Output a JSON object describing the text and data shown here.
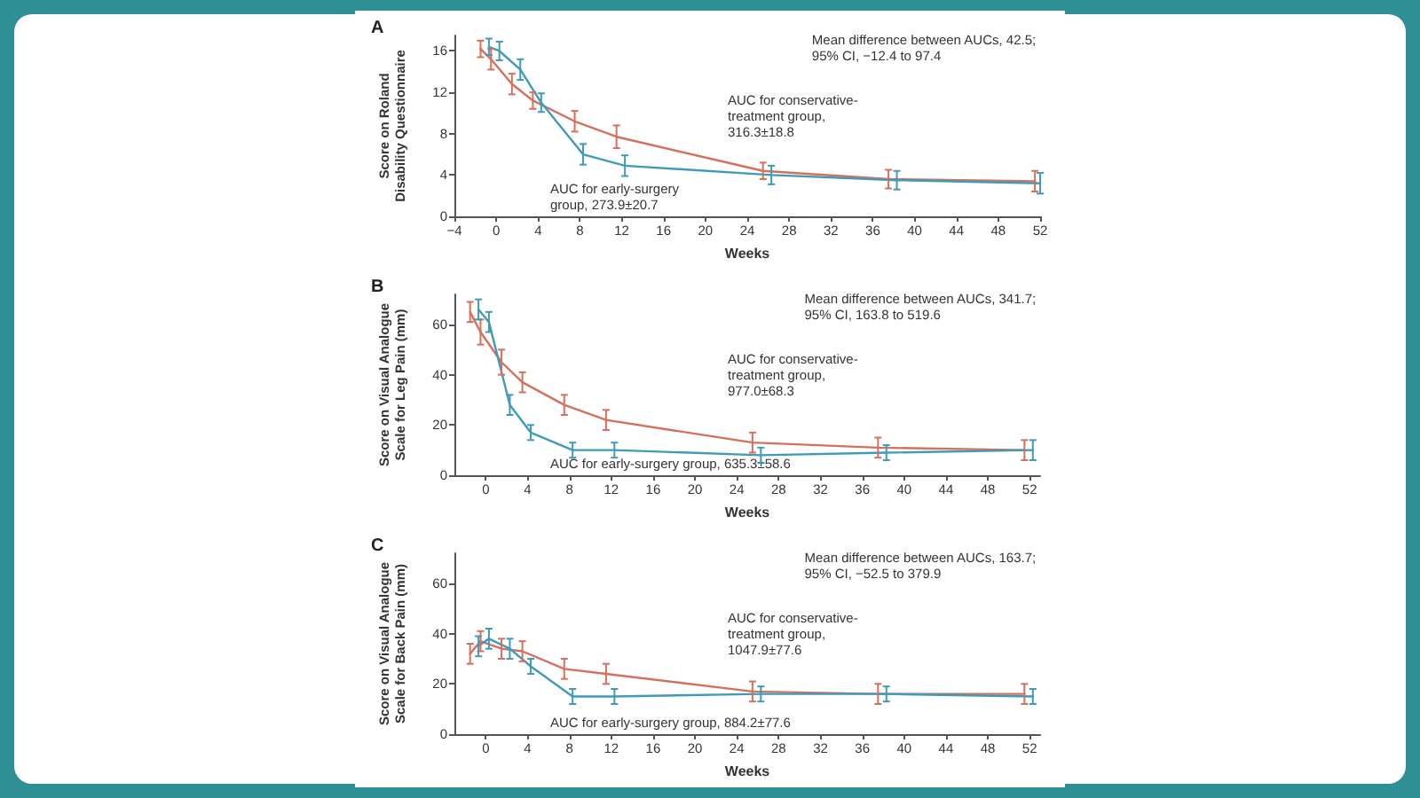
{
  "chart_data": [
    {
      "type": "line",
      "title": "A",
      "xlabel": "Weeks",
      "ylabel": "Score on Roland Disability Questionnaire",
      "xlim": [
        -4,
        52
      ],
      "xticks": [
        -4,
        0,
        4,
        8,
        12,
        16,
        20,
        24,
        28,
        32,
        36,
        40,
        44,
        48,
        52
      ],
      "ylim": [
        0,
        17.5
      ],
      "yticks": [
        0,
        4,
        8,
        12,
        16
      ],
      "grid": false,
      "marker": "none",
      "line_style": "solid",
      "series": [
        {
          "color": "#d4705c",
          "x": [
            -1.5,
            -0.5,
            1.5,
            3.5,
            7.5,
            11.5,
            25.5,
            37.5,
            51.5
          ],
          "values": [
            16.2,
            15.2,
            12.8,
            11.2,
            9.2,
            7.7,
            4.4,
            3.6,
            3.4
          ],
          "errors": [
            0.8,
            1.0,
            1.0,
            0.8,
            1.0,
            1.1,
            0.8,
            0.9,
            1.0
          ]
        },
        {
          "color": "#3f9bb8",
          "x": [
            -0.7,
            0.3,
            2.3,
            4.3,
            8.3,
            12.3,
            26.3,
            38.3,
            52
          ],
          "values": [
            16.4,
            16.0,
            14.2,
            11.0,
            6.0,
            4.9,
            4.0,
            3.5,
            3.2
          ],
          "errors": [
            0.8,
            0.9,
            1.0,
            0.9,
            1.0,
            1.0,
            0.9,
            0.9,
            1.0
          ]
        }
      ],
      "annotations": [
        "Mean difference between AUCs, 42.5;\n95% CI, −12.4 to 97.4",
        "AUC for conservative-\ntreatment group,\n316.3±18.8",
        "AUC for early-surgery\ngroup, 273.9±20.7"
      ]
    },
    {
      "type": "line",
      "title": "B",
      "xlabel": "Weeks",
      "ylabel": "Score on Visual Analogue Scale for Leg Pain (mm)",
      "xlim": [
        -3,
        53
      ],
      "xticks": [
        0,
        4,
        8,
        12,
        16,
        20,
        24,
        28,
        32,
        36,
        40,
        44,
        48,
        52
      ],
      "ylim": [
        0,
        72
      ],
      "yticks": [
        0,
        20,
        40,
        60
      ],
      "grid": false,
      "marker": "none",
      "line_style": "solid",
      "series": [
        {
          "color": "#d4705c",
          "x": [
            -1.5,
            -0.5,
            1.5,
            3.5,
            7.5,
            11.5,
            25.5,
            37.5,
            51.5
          ],
          "values": [
            65,
            57,
            45,
            37,
            28,
            22,
            13,
            11,
            10
          ],
          "errors": [
            4,
            5,
            5,
            4,
            4,
            4,
            4,
            4,
            4
          ]
        },
        {
          "color": "#3f9bb8",
          "x": [
            -0.7,
            0.3,
            2.3,
            4.3,
            8.3,
            12.3,
            26.3,
            38.3,
            52.3
          ],
          "values": [
            66,
            61,
            28,
            17,
            10,
            10,
            8,
            9,
            10
          ],
          "errors": [
            4,
            4,
            4,
            3,
            3,
            3,
            3,
            3,
            4
          ]
        }
      ],
      "annotations": [
        "Mean difference between AUCs, 341.7;\n95% CI, 163.8 to 519.6",
        "AUC for conservative-\ntreatment group,\n977.0±68.3",
        "AUC for early-surgery group, 635.3±58.6"
      ]
    },
    {
      "type": "line",
      "title": "C",
      "xlabel": "Weeks",
      "ylabel": "Score on Visual Analogue Scale for Back Pain (mm)",
      "xlim": [
        -3,
        53
      ],
      "xticks": [
        0,
        4,
        8,
        12,
        16,
        20,
        24,
        28,
        32,
        36,
        40,
        44,
        48,
        52
      ],
      "ylim": [
        0,
        72
      ],
      "yticks": [
        0,
        20,
        40,
        60
      ],
      "grid": false,
      "marker": "none",
      "line_style": "solid",
      "series": [
        {
          "color": "#d4705c",
          "x": [
            -1.5,
            -0.5,
            1.5,
            3.5,
            7.5,
            11.5,
            25.5,
            37.5,
            51.5
          ],
          "values": [
            32,
            37,
            34,
            33,
            26,
            24,
            17,
            16,
            16
          ],
          "errors": [
            4,
            4,
            4,
            4,
            4,
            4,
            4,
            4,
            4
          ]
        },
        {
          "color": "#3f9bb8",
          "x": [
            -0.7,
            0.3,
            2.3,
            4.3,
            8.3,
            12.3,
            26.3,
            38.3,
            52.3
          ],
          "values": [
            35,
            38,
            34,
            27,
            15,
            15,
            16,
            16,
            15
          ],
          "errors": [
            4,
            4,
            4,
            3,
            3,
            3,
            3,
            3,
            3
          ]
        }
      ],
      "annotations": [
        "Mean difference between AUCs, 163.7;\n95% CI, −52.5 to 379.9",
        "AUC for conservative-\ntreatment group,\n1047.9±77.6",
        "AUC for early-surgery group, 884.2±77.6"
      ]
    }
  ]
}
